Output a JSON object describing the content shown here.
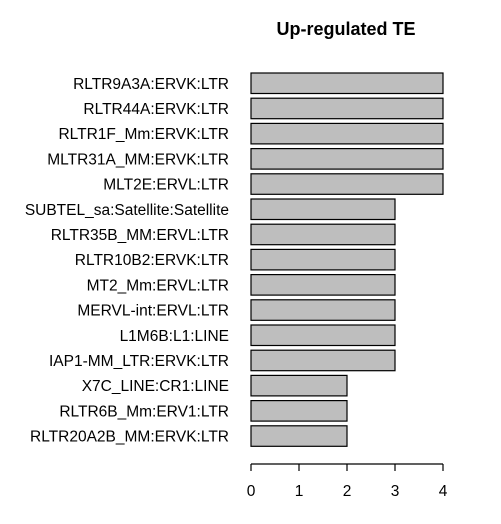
{
  "chart_data": {
    "type": "bar",
    "orientation": "horizontal",
    "title": "Up-regulated TE",
    "xlabel": "",
    "ylabel": "",
    "categories": [
      "RLTR9A3A:ERVK:LTR",
      "RLTR44A:ERVK:LTR",
      "RLTR1F_Mm:ERVK:LTR",
      "MLTR31A_MM:ERVK:LTR",
      "MLT2E:ERVL:LTR",
      "SUBTEL_sa:Satellite:Satellite",
      "RLTR35B_MM:ERVL:LTR",
      "RLTR10B2:ERVK:LTR",
      "MT2_Mm:ERVL:LTR",
      "MERVL-int:ERVL:LTR",
      "L1M6B:L1:LINE",
      "IAP1-MM_LTR:ERVK:LTR",
      "X7C_LINE:CR1:LINE",
      "RLTR6B_Mm:ERV1:LTR",
      "RLTR20A2B_MM:ERVK:LTR"
    ],
    "values": [
      4,
      4,
      4,
      4,
      4,
      3,
      3,
      3,
      3,
      3,
      3,
      3,
      2,
      2,
      2
    ],
    "xlim": [
      0,
      4
    ],
    "xticks": [
      "0",
      "1",
      "2",
      "3",
      "4"
    ],
    "grid": false,
    "legend": "none",
    "colors": {
      "bar_fill": "#bebebe",
      "bar_stroke": "#000000",
      "text": "#000000",
      "background": "#ffffff"
    }
  }
}
